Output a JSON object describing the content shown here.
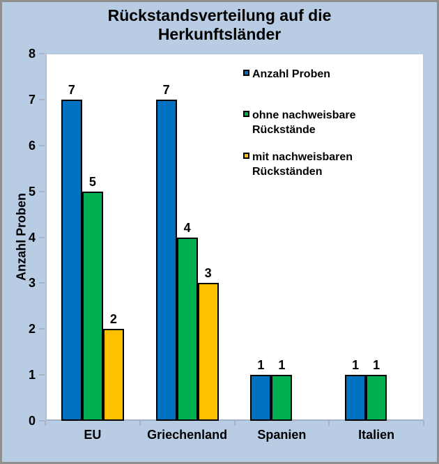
{
  "title": "Rückstandsverteilung auf die Herkunftsländer",
  "y_axis_title": "Anzahl Proben",
  "chart_data": {
    "type": "bar",
    "categories": [
      "EU",
      "Griechenland",
      "Spanien",
      "Italien"
    ],
    "series": [
      {
        "name": "Anzahl Proben",
        "color": "#0070C0",
        "values": [
          7,
          7,
          1,
          1
        ]
      },
      {
        "name": "ohne nachweisbare Rückstände",
        "color": "#00B050",
        "values": [
          5,
          4,
          1,
          1
        ]
      },
      {
        "name": "mit nachweisbaren Rückständen",
        "color": "#FFC000",
        "values": [
          2,
          3,
          0,
          0
        ]
      }
    ],
    "ylim": [
      0,
      8
    ],
    "y_ticks": [
      0,
      1,
      2,
      3,
      4,
      5,
      6,
      7,
      8
    ],
    "grid": false,
    "value_labels": true,
    "legend_position": "inside-top-right"
  },
  "colors": {
    "background": "#b8cce4",
    "plot_background": "#ffffff",
    "outer_border": "#8f8f8f",
    "axis": "#a6b2c6",
    "bar_border": "#000000",
    "text": "#000000"
  }
}
